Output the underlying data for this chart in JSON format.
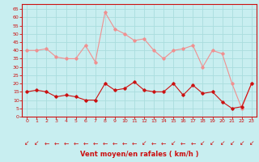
{
  "hours": [
    0,
    1,
    2,
    3,
    4,
    5,
    6,
    7,
    8,
    9,
    10,
    11,
    12,
    13,
    14,
    15,
    16,
    17,
    18,
    19,
    20,
    21,
    22,
    23
  ],
  "rafales": [
    40,
    40,
    41,
    36,
    35,
    35,
    43,
    33,
    63,
    53,
    50,
    46,
    47,
    40,
    35,
    40,
    41,
    43,
    30,
    40,
    38,
    20,
    5,
    20
  ],
  "moyen": [
    15,
    16,
    15,
    12,
    13,
    12,
    10,
    10,
    20,
    16,
    17,
    21,
    16,
    15,
    15,
    20,
    13,
    19,
    14,
    15,
    9,
    5,
    6,
    20
  ],
  "bg_color": "#c8eef0",
  "grid_color": "#aadddd",
  "line_color_rafales": "#f09090",
  "line_color_moyen": "#cc1111",
  "xlabel": "Vent moyen/en rafales ( km/h )",
  "yticks": [
    0,
    5,
    10,
    15,
    20,
    25,
    30,
    35,
    40,
    45,
    50,
    55,
    60,
    65
  ],
  "arrow_color": "#cc1111",
  "axis_color": "#cc1111",
  "tick_color": "#cc1111",
  "ymax": 68,
  "arrow_chars": [
    "↙",
    "↙",
    "←",
    "←",
    "←",
    "←",
    "←",
    "←",
    "←",
    "←",
    "←",
    "←",
    "↙",
    "←",
    "←",
    "↙",
    "←",
    "←",
    "↙",
    "↙",
    "↙",
    "↙",
    "↙",
    "↙"
  ]
}
